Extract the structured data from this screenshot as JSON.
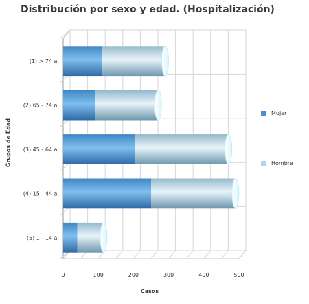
{
  "chart_data": {
    "type": "bar",
    "orientation": "horizontal",
    "stacked": true,
    "style": "3d-cylinder",
    "title": "Distribución por sexo y edad. (Hospitalización)",
    "xlabel": "Casos",
    "ylabel": "Grupos de Edad",
    "categories": [
      "(1) > 74 a.",
      "(2) 65 - 74 a.",
      "(3) 45 - 64 a.",
      "(4) 15 - 44 a.",
      "(5) 1 - 14 a."
    ],
    "series": [
      {
        "name": "Mujer",
        "values": [
          110,
          90,
          205,
          250,
          40
        ],
        "color": "#4a8fcc"
      },
      {
        "name": "Hombre",
        "values": [
          180,
          180,
          265,
          240,
          75
        ],
        "color": "#a9cde0"
      }
    ],
    "xlim": [
      0,
      500
    ],
    "xticks": [
      0,
      100,
      200,
      300,
      400,
      500
    ],
    "grid": true,
    "legend_position": "right"
  }
}
